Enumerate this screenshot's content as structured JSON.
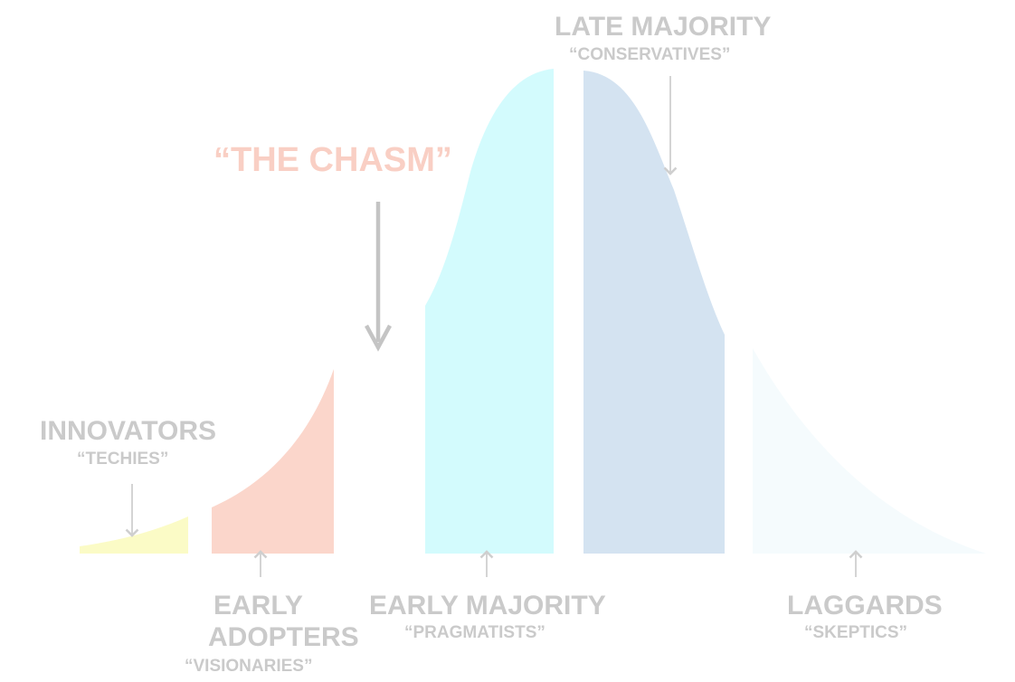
{
  "title": "“THE CHASM”",
  "segments": [
    {
      "name": "INNOVATORS",
      "nickname": "“TECHIES”",
      "color": "#fbfbc6"
    },
    {
      "name": "EARLY",
      "name_line2": "ADOPTERS",
      "nickname": "“VISIONARIES”",
      "color": "#fbd6cb"
    },
    {
      "name": "EARLY MAJORITY",
      "nickname": "“PRAGMATISTS”",
      "color": "#d3fbfd"
    },
    {
      "name": "LATE MAJORITY",
      "nickname": "“CONSERVATIVES”",
      "color": "#d4e3f1"
    },
    {
      "name": "LAGGARDS",
      "nickname": "“SKEPTICS”",
      "color": "#f5fbfd"
    }
  ],
  "colors": {
    "label": "#cacaca",
    "arrow": "#cfcfcf",
    "chasm_arrow": "#c4c4c4",
    "title": "#f9cfc4"
  }
}
